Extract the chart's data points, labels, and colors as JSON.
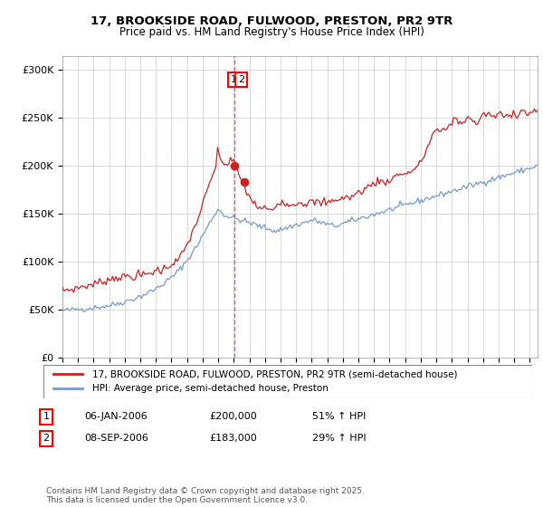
{
  "title": "17, BROOKSIDE ROAD, FULWOOD, PRESTON, PR2 9TR",
  "subtitle": "Price paid vs. HM Land Registry's House Price Index (HPI)",
  "ylabel_ticks": [
    "£0",
    "£50K",
    "£100K",
    "£150K",
    "£200K",
    "£250K",
    "£300K"
  ],
  "ytick_values": [
    0,
    50000,
    100000,
    150000,
    200000,
    250000,
    300000
  ],
  "ylim": [
    0,
    315000
  ],
  "xlim_start": 1995.0,
  "xlim_end": 2025.5,
  "red_line_color": "#cc2222",
  "blue_line_color": "#7799cc",
  "dashed_line_color": "#dd4444",
  "transaction1_date": 2006.03,
  "transaction1_price": 200000,
  "transaction2_date": 2006.69,
  "transaction2_price": 183000,
  "legend_red_label": "17, BROOKSIDE ROAD, FULWOOD, PRESTON, PR2 9TR (semi-detached house)",
  "legend_blue_label": "HPI: Average price, semi-detached house, Preston",
  "table_rows": [
    {
      "num": "1",
      "date": "06-JAN-2006",
      "price": "£200,000",
      "hpi": "51% ↑ HPI"
    },
    {
      "num": "2",
      "date": "08-SEP-2006",
      "price": "£183,000",
      "hpi": "29% ↑ HPI"
    }
  ],
  "footnote": "Contains HM Land Registry data © Crown copyright and database right 2025.\nThis data is licensed under the Open Government Licence v3.0.",
  "background_color": "#ffffff",
  "grid_color": "#cccccc",
  "hpi_blue": [
    49000,
    49200,
    49100,
    49300,
    49500,
    49400,
    49600,
    49800,
    50000,
    50100,
    50300,
    50500,
    50700,
    50600,
    50800,
    51000,
    51200,
    51400,
    51600,
    51800,
    52000,
    52200,
    52500,
    52800,
    53000,
    53200,
    53500,
    53800,
    54000,
    54300,
    54600,
    55000,
    55400,
    55800,
    56200,
    56600,
    57000,
    57500,
    58000,
    58500,
    59000,
    59500,
    60000,
    60600,
    61200,
    61800,
    62400,
    63000,
    63600,
    64300,
    65000,
    65800,
    66600,
    67400,
    68200,
    69000,
    70000,
    71000,
    72000,
    73000,
    74000,
    75200,
    76400,
    77600,
    78800,
    80000,
    81500,
    83000,
    84500,
    86000,
    87500,
    89000,
    91000,
    93000,
    95000,
    97000,
    99000,
    101000,
    103500,
    106000,
    108500,
    111000,
    113500,
    116000,
    119000,
    122000,
    125000,
    128000,
    131000,
    134000,
    137000,
    140000,
    143000,
    146000,
    149000,
    152000,
    154000,
    153500,
    152000,
    150500,
    149000,
    148000,
    147500,
    147000,
    146500,
    146000,
    145500,
    145000,
    144500,
    144000,
    143500,
    143000,
    142500,
    142000,
    141500,
    141000,
    140500,
    140000,
    139500,
    139000,
    138000,
    137500,
    137000,
    136500,
    136000,
    135500,
    135000,
    134500,
    134000,
    133500,
    133000,
    132500,
    132000,
    132500,
    133000,
    133500,
    134000,
    134500,
    135000,
    135500,
    136000,
    136500,
    137000,
    137500,
    138000,
    138500,
    139000,
    139500,
    140000,
    140500,
    141000,
    141500,
    142000,
    142500,
    143000,
    143500,
    143000,
    142500,
    142000,
    141500,
    141000,
    140500,
    140000,
    139500,
    139000,
    138500,
    138000,
    137500,
    137000,
    137500,
    138000,
    138500,
    139000,
    139500,
    140000,
    140500,
    141000,
    141500,
    142000,
    142500,
    143000,
    143500,
    144000,
    144500,
    145000,
    145500,
    146000,
    146500,
    147000,
    147500,
    148000,
    148500,
    149000,
    149500,
    150000,
    150500,
    151000,
    151500,
    152000,
    152500,
    153000,
    153500,
    154000,
    154500,
    155000,
    155500,
    156000,
    156500,
    157000,
    157500,
    158000,
    158500,
    159000,
    159500,
    160000,
    160500,
    161000,
    161500,
    162000,
    162500,
    163000,
    163500,
    164000,
    164500,
    165000,
    165500,
    166000,
    166500,
    167000,
    167500,
    168000,
    168500,
    169000,
    169500,
    170000,
    170500,
    171000,
    171500,
    172000,
    172500,
    173000,
    173500,
    174000,
    174500,
    175000,
    175500,
    176000,
    176500,
    177000,
    177500,
    178000,
    178500,
    179000,
    179500,
    180000,
    180500,
    181000,
    181500,
    182000,
    182500,
    183000,
    183500,
    184000,
    184500,
    185000,
    185500,
    186000,
    186500,
    187000,
    187500,
    188000,
    188500,
    189000,
    189500,
    190000,
    190500,
    191000,
    191500,
    192000,
    192500,
    193000,
    193500,
    194000,
    194500,
    195000,
    195500,
    196000,
    196500,
    197000,
    197500,
    198000,
    198500,
    199000,
    199500,
    200000
  ],
  "hpi_red": [
    70000,
    70500,
    70200,
    70800,
    71000,
    70500,
    71200,
    71500,
    72000,
    72500,
    73000,
    73500,
    74000,
    74500,
    74200,
    74800,
    75000,
    75500,
    76000,
    76500,
    77000,
    77500,
    78000,
    78500,
    79000,
    79500,
    80000,
    80500,
    81000,
    81500,
    82000,
    82500,
    83000,
    83500,
    84000,
    84500,
    83000,
    83500,
    84000,
    84500,
    85000,
    85500,
    83000,
    83500,
    84000,
    85000,
    86000,
    87000,
    85000,
    85500,
    86000,
    86500,
    87000,
    87500,
    88000,
    88500,
    89000,
    90000,
    91000,
    92000,
    90000,
    91000,
    92000,
    93000,
    94000,
    95000,
    96000,
    97000,
    98000,
    99000,
    100000,
    101000,
    103000,
    105000,
    108000,
    111000,
    114000,
    117000,
    121000,
    125000,
    129000,
    133000,
    137000,
    141000,
    146000,
    151000,
    156000,
    161000,
    166000,
    171000,
    176000,
    181000,
    186000,
    191000,
    196000,
    200000,
    215000,
    210000,
    207000,
    205000,
    203000,
    201000,
    200000,
    205000,
    208000,
    206000,
    204000,
    200000,
    196000,
    192000,
    188000,
    184000,
    180000,
    176000,
    172000,
    170000,
    168000,
    165000,
    162000,
    160000,
    158000,
    157000,
    156000,
    155000,
    156000,
    157000,
    155000,
    154000,
    153000,
    154000,
    155000,
    156000,
    158000,
    160000,
    162000,
    163000,
    164000,
    163000,
    162000,
    160000,
    159000,
    158000,
    160000,
    162000,
    161000,
    160000,
    162000,
    163000,
    162000,
    161000,
    160000,
    161000,
    162000,
    163000,
    162000,
    161000,
    162000,
    163000,
    162000,
    161000,
    160000,
    162000,
    163000,
    162000,
    161000,
    162000,
    163000,
    164000,
    165000,
    166000,
    165000,
    164000,
    165000,
    166000,
    167000,
    168000,
    167000,
    166000,
    167000,
    168000,
    169000,
    170000,
    171000,
    172000,
    173000,
    174000,
    175000,
    176000,
    177000,
    178000,
    179000,
    180000,
    181000,
    182000,
    183000,
    184000,
    185000,
    184000,
    183000,
    182000,
    183000,
    184000,
    185000,
    186000,
    187000,
    188000,
    189000,
    190000,
    191000,
    192000,
    193000,
    192000,
    191000,
    192000,
    193000,
    194000,
    195000,
    196000,
    197000,
    198000,
    200000,
    202000,
    205000,
    208000,
    212000,
    216000,
    220000,
    224000,
    228000,
    232000,
    236000,
    238000,
    237000,
    236000,
    235000,
    236000,
    237000,
    238000,
    240000,
    242000,
    244000,
    246000,
    248000,
    250000,
    248000,
    246000,
    244000,
    245000,
    246000,
    248000,
    250000,
    252000,
    250000,
    248000,
    246000,
    245000,
    244000,
    246000,
    248000,
    250000,
    252000,
    254000,
    255000,
    254000,
    253000,
    252000,
    253000,
    252000,
    251000,
    253000,
    255000,
    254000,
    253000,
    252000,
    251000,
    252000,
    253000,
    254000,
    255000,
    256000,
    255000,
    254000,
    255000,
    256000,
    257000,
    258000,
    257000,
    256000,
    255000,
    254000,
    255000,
    256000,
    257000,
    258000,
    259000
  ]
}
